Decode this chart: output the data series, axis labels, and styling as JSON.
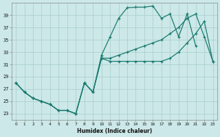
{
  "bg_color": "#cce8e8",
  "grid_color": "#a8cccc",
  "line_color": "#1a7a6e",
  "xlabel": "Humidex (Indice chaleur)",
  "xlim": [
    -0.5,
    23.5
  ],
  "ylim": [
    22.0,
    41.0
  ],
  "xticks": [
    0,
    1,
    2,
    3,
    4,
    5,
    6,
    7,
    8,
    9,
    10,
    11,
    12,
    13,
    14,
    15,
    16,
    17,
    18,
    19,
    20,
    21,
    22,
    23
  ],
  "yticks": [
    23,
    25,
    27,
    29,
    31,
    33,
    35,
    37,
    39
  ],
  "line1_x": [
    0,
    1,
    2,
    3,
    4,
    5,
    6,
    7,
    8,
    9,
    10,
    11,
    12,
    13,
    14,
    15,
    16,
    17,
    18,
    19,
    20,
    21,
    22,
    23
  ],
  "line1_y": [
    28.0,
    26.5,
    25.5,
    25.0,
    24.5,
    23.5,
    23.5,
    23.0,
    28.0,
    26.5,
    32.5,
    35.5,
    38.5,
    40.2,
    40.3,
    40.3,
    40.5,
    38.5,
    39.2,
    35.5,
    39.2,
    34.0,
    null,
    null
  ],
  "line2_x": [
    0,
    1,
    2,
    3,
    4,
    5,
    6,
    7,
    8,
    9,
    10,
    11,
    12,
    13,
    14,
    15,
    16,
    17,
    18,
    19,
    20,
    21,
    22,
    23
  ],
  "line2_y": [
    28.0,
    26.5,
    25.5,
    25.0,
    24.5,
    23.5,
    23.5,
    23.0,
    28.0,
    26.5,
    32.0,
    32.0,
    32.5,
    33.0,
    33.5,
    34.0,
    34.5,
    35.0,
    36.0,
    37.0,
    38.5,
    39.2,
    35.5,
    31.5
  ],
  "line3_x": [
    0,
    1,
    2,
    3,
    4,
    5,
    6,
    7,
    8,
    9,
    10,
    11,
    12,
    13,
    14,
    15,
    16,
    17,
    18,
    19,
    20,
    21,
    22,
    23
  ],
  "line3_y": [
    28.0,
    26.5,
    25.5,
    25.0,
    24.5,
    23.5,
    23.5,
    23.0,
    28.0,
    26.5,
    32.0,
    31.5,
    31.5,
    31.5,
    31.5,
    31.5,
    31.5,
    31.5,
    32.0,
    33.0,
    34.5,
    36.0,
    38.0,
    31.5
  ]
}
